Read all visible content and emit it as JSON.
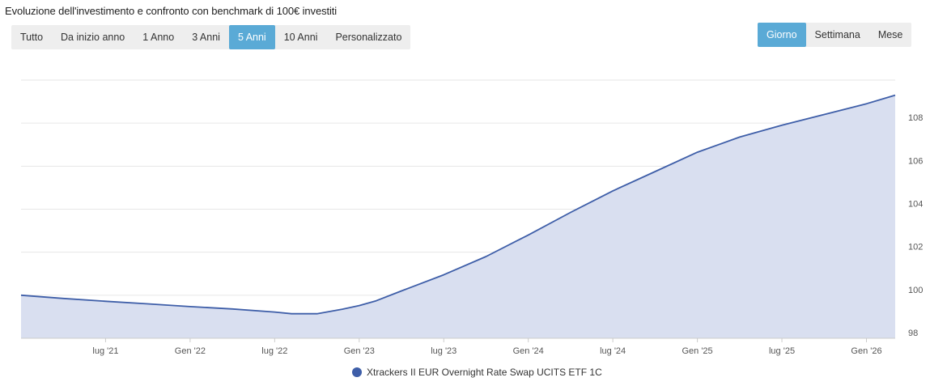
{
  "title": "Evoluzione dell'investimento e confronto con benchmark di 100€ investiti",
  "range_buttons": [
    {
      "label": "Tutto",
      "active": false
    },
    {
      "label": "Da inizio anno",
      "active": false
    },
    {
      "label": "1 Anno",
      "active": false
    },
    {
      "label": "3 Anni",
      "active": false
    },
    {
      "label": "5 Anni",
      "active": true
    },
    {
      "label": "10 Anni",
      "active": false
    },
    {
      "label": "Personalizzato",
      "active": false
    }
  ],
  "granularity_buttons": [
    {
      "label": "Giorno",
      "active": true
    },
    {
      "label": "Settimana",
      "active": false
    },
    {
      "label": "Mese",
      "active": false
    }
  ],
  "colors": {
    "line": "#3e5ea8",
    "area": "#d9dff0",
    "grid": "#e6e6e6",
    "active_button": "#5aaad6"
  },
  "legend": {
    "label": "Xtrackers II EUR Overnight Rate Swap UCITS ETF 1C",
    "icon": "circle-icon"
  },
  "chart_data": {
    "type": "area",
    "title": "Evoluzione dell'investimento e confronto con benchmark di 100€ investiti",
    "xlabel": "",
    "ylabel": "",
    "x_range": [
      2021.0,
      2026.17
    ],
    "y_range": [
      98,
      110
    ],
    "y_ticks": [
      98,
      100,
      102,
      104,
      106,
      108
    ],
    "y_tick_labels": [
      "98",
      "100",
      "102",
      "104",
      "106",
      "108"
    ],
    "x_ticks": [
      2021.5,
      2022.0,
      2022.5,
      2023.0,
      2023.5,
      2024.0,
      2024.5,
      2025.0,
      2025.5,
      2026.0
    ],
    "x_tick_labels": [
      "lug '21",
      "Gen '22",
      "lug '22",
      "Gen '23",
      "lug '23",
      "Gen '24",
      "lug '24",
      "Gen '25",
      "lug '25",
      "Gen '26"
    ],
    "y_axis_position": "right",
    "grid": true,
    "legend_position": "bottom-center",
    "series": [
      {
        "name": "Xtrackers II EUR Overnight Rate Swap UCITS ETF 1C",
        "x": [
          2021.0,
          2021.25,
          2021.5,
          2021.75,
          2022.0,
          2022.25,
          2022.5,
          2022.6,
          2022.75,
          2022.9,
          2023.0,
          2023.1,
          2023.25,
          2023.5,
          2023.75,
          2024.0,
          2024.25,
          2024.5,
          2024.75,
          2025.0,
          2025.25,
          2025.5,
          2025.75,
          2026.0,
          2026.17
        ],
        "values": [
          100.0,
          99.85,
          99.72,
          99.6,
          99.47,
          99.36,
          99.22,
          99.14,
          99.14,
          99.35,
          99.52,
          99.74,
          100.2,
          100.95,
          101.8,
          102.8,
          103.85,
          104.85,
          105.75,
          106.65,
          107.35,
          107.9,
          108.4,
          108.9,
          109.3
        ]
      }
    ]
  }
}
